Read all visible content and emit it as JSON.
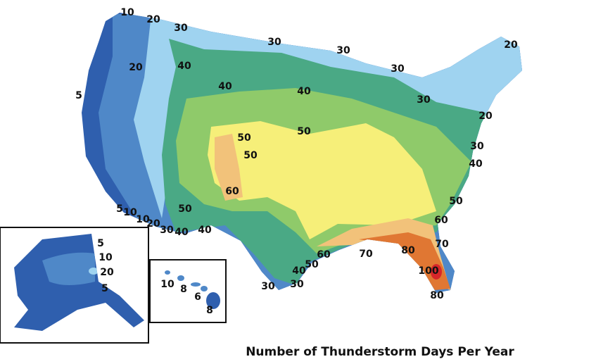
{
  "title": "Number of Thunderstorm Days Per Year",
  "contiguous_us_labels": [
    10,
    20,
    30,
    30,
    30,
    30,
    20,
    40,
    20,
    40,
    40,
    5,
    30,
    20,
    50,
    50,
    50,
    30,
    40,
    60,
    5,
    10,
    10,
    20,
    50,
    30,
    40,
    40,
    50,
    60,
    70,
    60,
    70,
    80,
    50,
    40,
    100,
    30,
    30,
    80
  ],
  "alaska_labels": [
    5,
    10,
    20,
    5
  ],
  "hawaii_labels": [
    10,
    8,
    6,
    8
  ]
}
